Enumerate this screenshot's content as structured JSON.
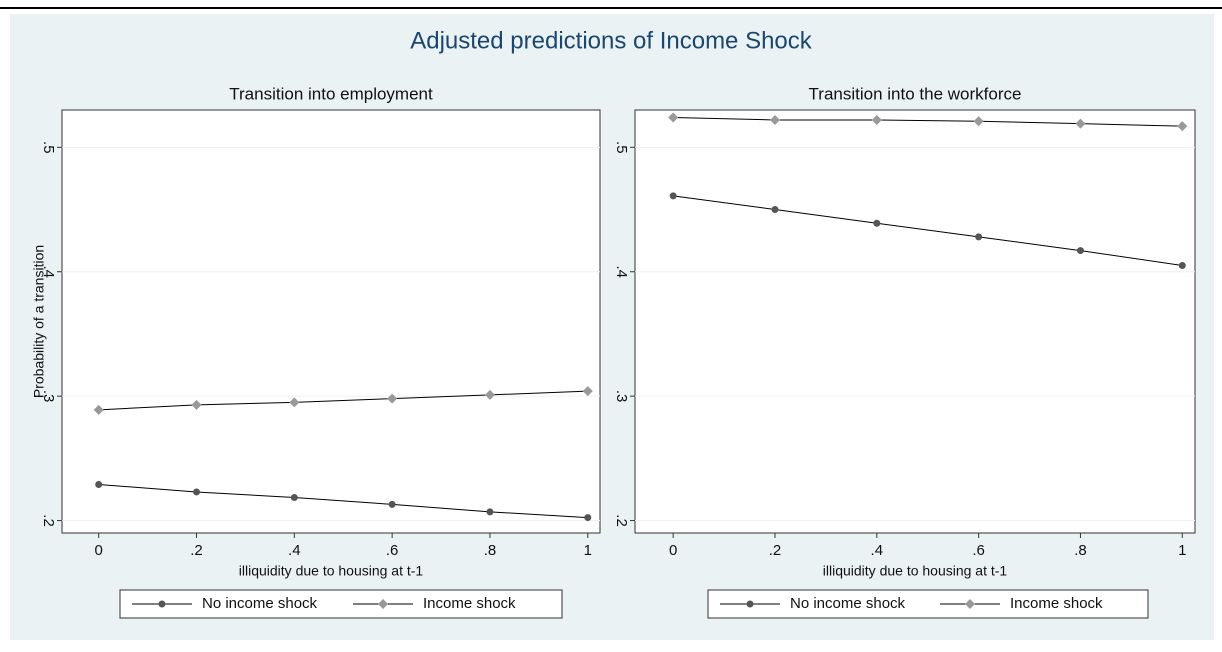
{
  "title": "Adjusted predictions of Income Shock",
  "chart_data": [
    {
      "type": "line",
      "title": "Transition into employment",
      "x_label": "illiquidity due to housing at t-1",
      "y_label": "Probability of a transition",
      "x": [
        0,
        0.2,
        0.4,
        0.6,
        0.8,
        1
      ],
      "series": [
        {
          "name": "No income shock",
          "color": "#555555",
          "marker": "circle",
          "values": [
            0.229,
            0.223,
            0.2185,
            0.213,
            0.207,
            0.2024
          ]
        },
        {
          "name": "Income shock",
          "color": "#999999",
          "marker": "diamond",
          "values": [
            0.289,
            0.293,
            0.295,
            0.298,
            0.301,
            0.304
          ]
        }
      ],
      "xlim": [
        -0.075,
        1.025
      ],
      "ylim": [
        0.19,
        0.53
      ],
      "xticks": [
        0,
        {
          "value": 0.2,
          "label": ".2"
        },
        {
          "value": 0.4,
          "label": ".4"
        },
        {
          "value": 0.6,
          "label": ".6"
        },
        {
          "value": 0.8,
          "label": ".8"
        },
        1
      ],
      "yticks": [
        {
          "value": 0.2,
          "label": ".2"
        },
        {
          "value": 0.3,
          "label": ".3"
        },
        {
          "value": 0.4,
          "label": ".4"
        },
        {
          "value": 0.5,
          "label": ".5"
        }
      ],
      "grid": true,
      "legend": "bottom"
    },
    {
      "type": "line",
      "title": "Transition into the workforce",
      "x_label": "illiquidity due to housing at t-1",
      "x": [
        0,
        0.2,
        0.4,
        0.6,
        0.8,
        1
      ],
      "series": [
        {
          "name": "No income shock",
          "color": "#555555",
          "marker": "circle",
          "values": [
            0.461,
            0.45,
            0.439,
            0.428,
            0.417,
            0.405
          ]
        },
        {
          "name": "Income shock",
          "color": "#999999",
          "marker": "diamond",
          "values": [
            0.524,
            0.522,
            0.522,
            0.521,
            0.519,
            0.517
          ]
        }
      ],
      "xlim": [
        -0.075,
        1.025
      ],
      "ylim": [
        0.19,
        0.53
      ],
      "xticks": [
        0,
        {
          "value": 0.2,
          "label": ".2"
        },
        {
          "value": 0.4,
          "label": ".4"
        },
        {
          "value": 0.6,
          "label": ".6"
        },
        {
          "value": 0.8,
          "label": ".8"
        },
        1
      ],
      "yticks": [
        {
          "value": 0.2,
          "label": ".2"
        },
        {
          "value": 0.3,
          "label": ".3"
        },
        {
          "value": 0.4,
          "label": ".4"
        },
        {
          "value": 0.5,
          "label": ".5"
        }
      ],
      "grid": true,
      "legend": "bottom"
    }
  ]
}
